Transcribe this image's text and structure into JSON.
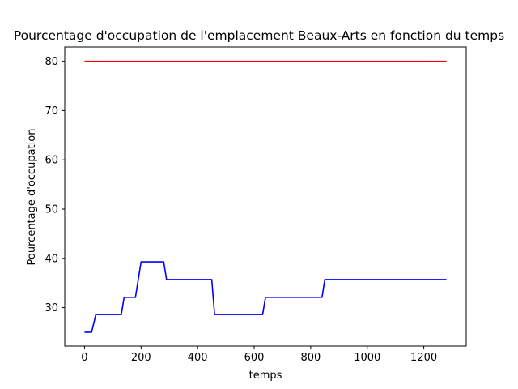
{
  "chart_data": {
    "type": "line",
    "title": "Pourcentage d'occupation de l'emplacement Beaux-Arts en fonction du temps",
    "xlabel": "temps",
    "ylabel": "Pourcentage d'occupation",
    "xlim": [
      -70,
      1350
    ],
    "ylim": [
      22.2,
      82.9
    ],
    "xticks": [
      0,
      200,
      400,
      600,
      800,
      1000,
      1200
    ],
    "yticks": [
      30,
      40,
      50,
      60,
      70,
      80
    ],
    "grid": false,
    "legend": "none",
    "series": [
      {
        "color": "#ff0000",
        "x": [
          0,
          1280
        ],
        "y": [
          80,
          80
        ]
      },
      {
        "color": "#0000ff",
        "x": [
          0,
          25,
          40,
          130,
          140,
          180,
          200,
          280,
          290,
          450,
          460,
          630,
          640,
          840,
          850,
          1280
        ],
        "y": [
          25.0,
          25.0,
          28.6,
          28.6,
          32.1,
          32.1,
          39.3,
          39.3,
          35.7,
          35.7,
          28.6,
          28.6,
          32.1,
          32.1,
          35.7,
          35.7
        ]
      }
    ]
  }
}
